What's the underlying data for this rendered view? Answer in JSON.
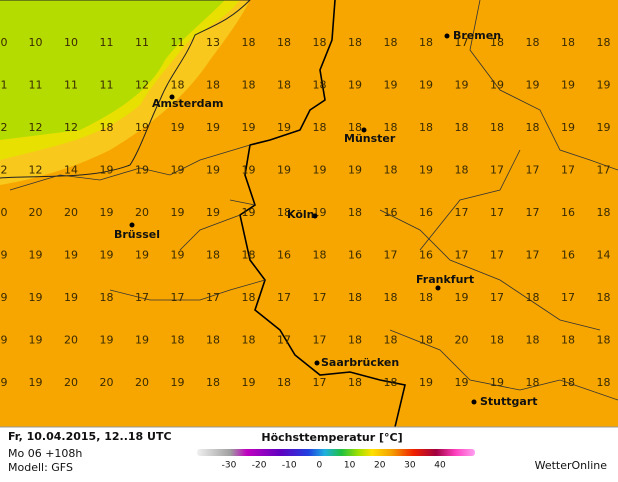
{
  "grid": [
    [
      0,
      10,
      10,
      11,
      11,
      11,
      13,
      18,
      18,
      18,
      18,
      18,
      18,
      17,
      18,
      18,
      18,
      18
    ],
    [
      1,
      11,
      11,
      11,
      12,
      18,
      18,
      18,
      18,
      18,
      19,
      19,
      19,
      19,
      19,
      19,
      19,
      19
    ],
    [
      2,
      12,
      12,
      18,
      19,
      19,
      19,
      19,
      19,
      18,
      18,
      18,
      18,
      18,
      18,
      18,
      19,
      19
    ],
    [
      2,
      12,
      14,
      19,
      19,
      19,
      19,
      19,
      19,
      19,
      19,
      18,
      19,
      18,
      17,
      17,
      17,
      17
    ],
    [
      0,
      20,
      20,
      19,
      20,
      19,
      19,
      19,
      18,
      19,
      18,
      16,
      16,
      17,
      17,
      17,
      16,
      18
    ],
    [
      9,
      19,
      19,
      19,
      19,
      19,
      18,
      18,
      16,
      18,
      16,
      17,
      16,
      17,
      17,
      17,
      16,
      14
    ],
    [
      9,
      19,
      19,
      18,
      17,
      17,
      17,
      18,
      17,
      17,
      18,
      18,
      18,
      19,
      17,
      18,
      17,
      18
    ],
    [
      9,
      19,
      20,
      19,
      19,
      18,
      18,
      18,
      17,
      17,
      18,
      18,
      18,
      20,
      18,
      18,
      18,
      18
    ],
    [
      9,
      19,
      20,
      20,
      20,
      19,
      18,
      19,
      18,
      17,
      18,
      18,
      19,
      19,
      19,
      18,
      18,
      18
    ]
  ],
  "cities": [
    "Bremen",
    "Amsterdam",
    "Münster",
    "Köln",
    "Brüssel",
    "Frankfurt",
    "Saarbrücken",
    "Stuttgart"
  ],
  "footer": {
    "date": "Fr, 10.04.2015, 12..18 UTC",
    "run": "Mo 06 +108h",
    "model": "Modell: GFS",
    "brand": "WetterOnline"
  },
  "legend": {
    "title": "Höchsttemperatur [°C]",
    "ticks": [
      -30,
      -20,
      -10,
      0,
      10,
      20,
      30,
      40
    ]
  }
}
